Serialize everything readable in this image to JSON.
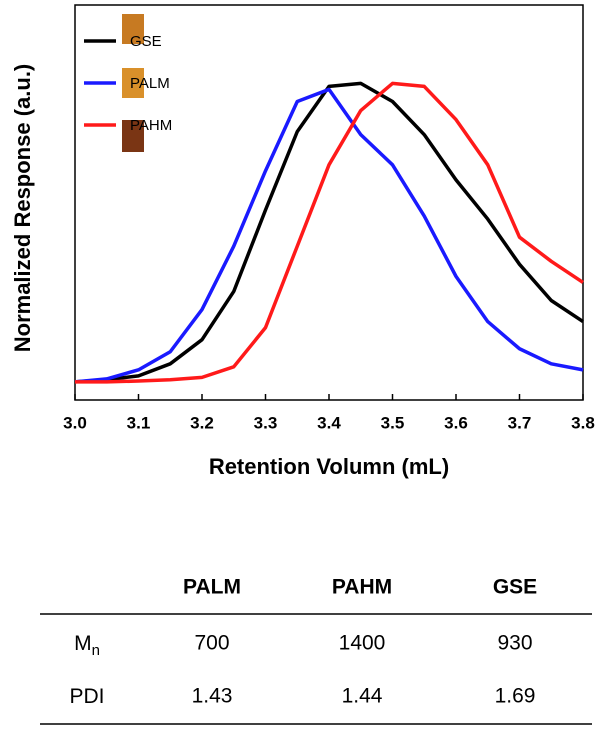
{
  "chart_data": {
    "type": "line",
    "xlabel": "Retention Volumn (mL)",
    "ylabel": "Normalized Response (a.u.)",
    "x": [
      3.0,
      3.05,
      3.1,
      3.15,
      3.2,
      3.25,
      3.3,
      3.35,
      3.4,
      3.45,
      3.5,
      3.55,
      3.6,
      3.65,
      3.7,
      3.75,
      3.8
    ],
    "xlim": [
      3.0,
      3.8
    ],
    "xticks": [
      {
        "value": 3.0,
        "label": "3.0"
      },
      3.1,
      3.2,
      3.3,
      3.4,
      3.5,
      3.6,
      3.7,
      {
        "value": 3.8,
        "label": "3.8"
      }
    ],
    "ylim": [
      -0.06,
      1.25
    ],
    "legend": "top-left",
    "series": [
      {
        "name": "GSE",
        "color": "#000000",
        "values": [
          0,
          0.007,
          0.02,
          0.06,
          0.14,
          0.3,
          0.57,
          0.83,
          0.98,
          0.99,
          0.93,
          0.82,
          0.67,
          0.54,
          0.39,
          0.27,
          0.2
        ]
      },
      {
        "name": "PALM",
        "color": "#1a1aff",
        "values": [
          0,
          0.01,
          0.04,
          0.1,
          0.24,
          0.45,
          0.7,
          0.93,
          0.97,
          0.82,
          0.72,
          0.55,
          0.35,
          0.2,
          0.11,
          0.06,
          0.04
        ]
      },
      {
        "name": "PAHM",
        "color": "#ff1a1a",
        "values": [
          0,
          0,
          0.003,
          0.007,
          0.015,
          0.05,
          0.18,
          0.45,
          0.72,
          0.9,
          0.99,
          0.98,
          0.87,
          0.72,
          0.48,
          0.4,
          0.33
        ]
      }
    ]
  },
  "table": {
    "header": [
      "PALM",
      "PAHM",
      "GSE"
    ],
    "rows": [
      {
        "label": "M",
        "subscript": "n",
        "values": [
          700,
          1400,
          930
        ]
      },
      {
        "label": "PDI",
        "values": [
          1.43,
          1.44,
          1.69
        ]
      }
    ]
  }
}
